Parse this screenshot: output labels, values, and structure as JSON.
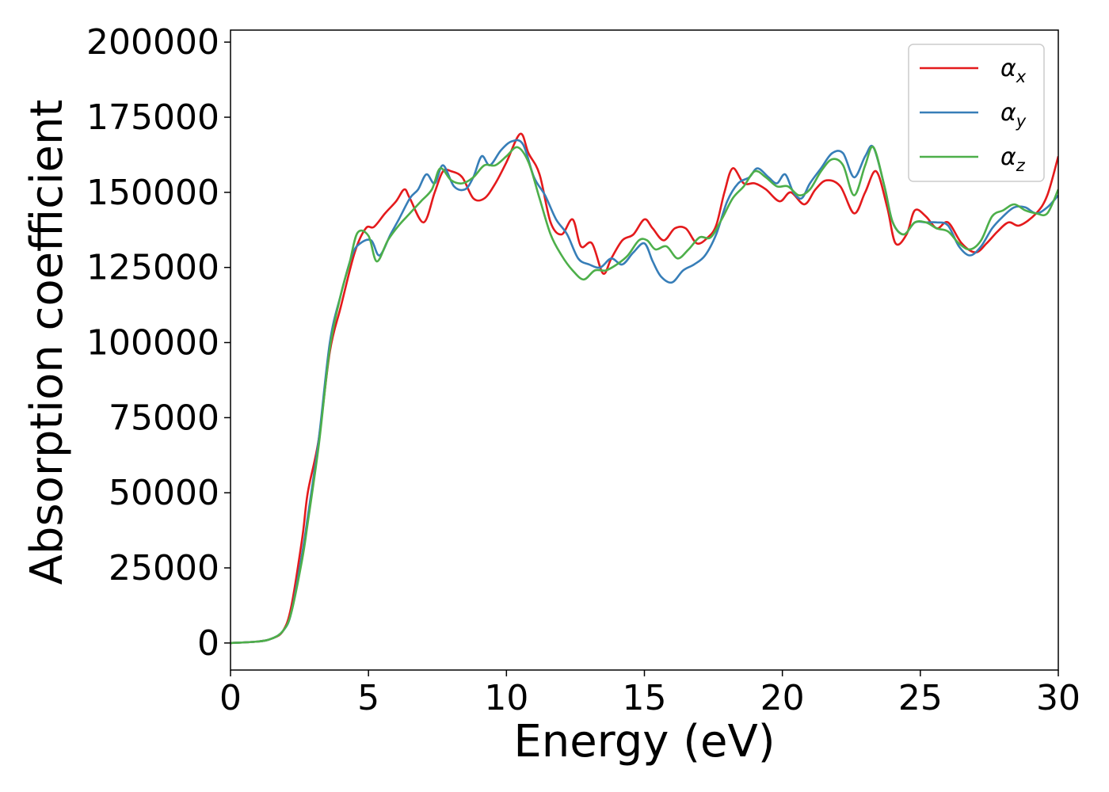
{
  "chart_data": {
    "type": "line",
    "title": "",
    "xlabel": "Energy (eV)",
    "ylabel": "Absorption coefficient",
    "xlim": [
      0,
      30
    ],
    "ylim": [
      -9000,
      204000
    ],
    "x_ticks": [
      0,
      5,
      10,
      15,
      20,
      25,
      30
    ],
    "y_ticks": [
      0,
      25000,
      50000,
      75000,
      100000,
      125000,
      150000,
      175000,
      200000
    ],
    "x_tick_labels": [
      "0",
      "5",
      "10",
      "15",
      "20",
      "25",
      "30"
    ],
    "y_tick_labels": [
      "0",
      "25000",
      "50000",
      "75000",
      "100000",
      "125000",
      "150000",
      "175000",
      "200000"
    ],
    "grid": false,
    "legend_position": "top-right",
    "series": [
      {
        "name": "α_x",
        "label_symbol": "α",
        "label_sub": "x",
        "color": "#e41a1c",
        "points": [
          [
            0,
            0
          ],
          [
            1,
            500
          ],
          [
            1.5,
            1500
          ],
          [
            1.9,
            4000
          ],
          [
            2.2,
            12000
          ],
          [
            2.6,
            35000
          ],
          [
            2.8,
            50000
          ],
          [
            3.2,
            68000
          ],
          [
            3.6,
            97000
          ],
          [
            4.0,
            112000
          ],
          [
            4.5,
            130000
          ],
          [
            4.9,
            138000
          ],
          [
            5.2,
            138500
          ],
          [
            5.6,
            143000
          ],
          [
            6.0,
            147000
          ],
          [
            6.3,
            151000
          ],
          [
            6.5,
            148000
          ],
          [
            7.0,
            140000
          ],
          [
            7.4,
            150000
          ],
          [
            7.7,
            157000
          ],
          [
            8.0,
            157000
          ],
          [
            8.4,
            155000
          ],
          [
            8.8,
            148000
          ],
          [
            9.2,
            148000
          ],
          [
            9.6,
            153000
          ],
          [
            10.0,
            160000
          ],
          [
            10.5,
            169500
          ],
          [
            10.8,
            163000
          ],
          [
            11.2,
            156000
          ],
          [
            11.6,
            140000
          ],
          [
            12.0,
            136000
          ],
          [
            12.4,
            141000
          ],
          [
            12.7,
            132000
          ],
          [
            13.1,
            133000
          ],
          [
            13.5,
            123000
          ],
          [
            13.8,
            128000
          ],
          [
            14.2,
            134000
          ],
          [
            14.6,
            136000
          ],
          [
            15.0,
            141000
          ],
          [
            15.3,
            138000
          ],
          [
            15.7,
            134000
          ],
          [
            16.1,
            138000
          ],
          [
            16.5,
            138000
          ],
          [
            16.9,
            133000
          ],
          [
            17.3,
            135000
          ],
          [
            17.6,
            139000
          ],
          [
            17.9,
            150000
          ],
          [
            18.2,
            158000
          ],
          [
            18.6,
            153000
          ],
          [
            19.0,
            153000
          ],
          [
            19.4,
            151000
          ],
          [
            19.9,
            147000
          ],
          [
            20.3,
            150000
          ],
          [
            20.8,
            146000
          ],
          [
            21.2,
            151000
          ],
          [
            21.6,
            154000
          ],
          [
            22.1,
            152000
          ],
          [
            22.6,
            143000
          ],
          [
            23.0,
            150000
          ],
          [
            23.4,
            157000
          ],
          [
            23.8,
            145000
          ],
          [
            24.1,
            133000
          ],
          [
            24.5,
            136000
          ],
          [
            24.8,
            144000
          ],
          [
            25.2,
            142000
          ],
          [
            25.6,
            138000
          ],
          [
            26.0,
            140000
          ],
          [
            26.5,
            133000
          ],
          [
            27.0,
            130000
          ],
          [
            27.4,
            133000
          ],
          [
            27.8,
            137000
          ],
          [
            28.2,
            140000
          ],
          [
            28.6,
            139000
          ],
          [
            29.2,
            143000
          ],
          [
            29.6,
            149000
          ],
          [
            30.0,
            162000
          ]
        ]
      },
      {
        "name": "α_y",
        "label_symbol": "α",
        "label_sub": "y",
        "color": "#377eb8",
        "points": [
          [
            0,
            0
          ],
          [
            1,
            500
          ],
          [
            1.5,
            1500
          ],
          [
            1.9,
            4000
          ],
          [
            2.2,
            10000
          ],
          [
            2.6,
            30000
          ],
          [
            2.8,
            42000
          ],
          [
            3.2,
            68000
          ],
          [
            3.6,
            100000
          ],
          [
            4.0,
            116000
          ],
          [
            4.4,
            129000
          ],
          [
            4.7,
            133000
          ],
          [
            5.1,
            134000
          ],
          [
            5.4,
            129000
          ],
          [
            5.8,
            136000
          ],
          [
            6.1,
            141000
          ],
          [
            6.5,
            148000
          ],
          [
            6.8,
            151000
          ],
          [
            7.1,
            156000
          ],
          [
            7.4,
            153000
          ],
          [
            7.7,
            159000
          ],
          [
            8.1,
            152000
          ],
          [
            8.5,
            151000
          ],
          [
            8.8,
            155000
          ],
          [
            9.1,
            162000
          ],
          [
            9.4,
            159000
          ],
          [
            9.8,
            164000
          ],
          [
            10.2,
            167000
          ],
          [
            10.6,
            166000
          ],
          [
            11.0,
            155000
          ],
          [
            11.4,
            149000
          ],
          [
            11.8,
            141000
          ],
          [
            12.2,
            136000
          ],
          [
            12.6,
            128000
          ],
          [
            13.0,
            126000
          ],
          [
            13.4,
            125000
          ],
          [
            13.8,
            128000
          ],
          [
            14.2,
            126000
          ],
          [
            14.6,
            130000
          ],
          [
            15.0,
            133000
          ],
          [
            15.3,
            127000
          ],
          [
            15.6,
            122000
          ],
          [
            16.0,
            120000
          ],
          [
            16.4,
            124000
          ],
          [
            16.8,
            126000
          ],
          [
            17.2,
            129000
          ],
          [
            17.6,
            136000
          ],
          [
            18.0,
            147000
          ],
          [
            18.4,
            153000
          ],
          [
            18.8,
            155000
          ],
          [
            19.1,
            158000
          ],
          [
            19.5,
            155000
          ],
          [
            19.8,
            153000
          ],
          [
            20.1,
            156000
          ],
          [
            20.4,
            150000
          ],
          [
            20.7,
            148000
          ],
          [
            21.0,
            153000
          ],
          [
            21.4,
            158000
          ],
          [
            21.8,
            163000
          ],
          [
            22.2,
            163000
          ],
          [
            22.6,
            155000
          ],
          [
            23.0,
            162000
          ],
          [
            23.3,
            165000
          ],
          [
            23.7,
            152000
          ],
          [
            24.0,
            140000
          ],
          [
            24.4,
            136000
          ],
          [
            24.8,
            140000
          ],
          [
            25.2,
            140000
          ],
          [
            25.6,
            140000
          ],
          [
            26.0,
            139000
          ],
          [
            26.4,
            132000
          ],
          [
            26.8,
            129000
          ],
          [
            27.2,
            132000
          ],
          [
            27.6,
            138000
          ],
          [
            28.0,
            142000
          ],
          [
            28.4,
            145000
          ],
          [
            28.8,
            145000
          ],
          [
            29.2,
            143000
          ],
          [
            29.6,
            145000
          ],
          [
            30.0,
            149000
          ]
        ]
      },
      {
        "name": "α_z",
        "label_symbol": "α",
        "label_sub": "z",
        "color": "#4daf4a",
        "points": [
          [
            0,
            0
          ],
          [
            1,
            500
          ],
          [
            1.5,
            1500
          ],
          [
            1.9,
            4000
          ],
          [
            2.2,
            10000
          ],
          [
            2.6,
            28000
          ],
          [
            2.8,
            40000
          ],
          [
            3.2,
            66000
          ],
          [
            3.6,
            98000
          ],
          [
            4.0,
            116000
          ],
          [
            4.3,
            126000
          ],
          [
            4.6,
            136500
          ],
          [
            5.0,
            135500
          ],
          [
            5.3,
            127000
          ],
          [
            5.7,
            134000
          ],
          [
            6.1,
            139000
          ],
          [
            6.5,
            143000
          ],
          [
            6.9,
            147000
          ],
          [
            7.3,
            151000
          ],
          [
            7.6,
            158000
          ],
          [
            8.0,
            154000
          ],
          [
            8.4,
            153000
          ],
          [
            8.8,
            155000
          ],
          [
            9.2,
            159000
          ],
          [
            9.6,
            159000
          ],
          [
            10.0,
            162000
          ],
          [
            10.4,
            165000
          ],
          [
            10.8,
            160000
          ],
          [
            11.2,
            148000
          ],
          [
            11.6,
            136000
          ],
          [
            12.0,
            129000
          ],
          [
            12.4,
            124000
          ],
          [
            12.8,
            121000
          ],
          [
            13.2,
            124000
          ],
          [
            13.6,
            124000
          ],
          [
            14.0,
            126000
          ],
          [
            14.4,
            129000
          ],
          [
            14.8,
            134000
          ],
          [
            15.1,
            134000
          ],
          [
            15.4,
            131000
          ],
          [
            15.8,
            132000
          ],
          [
            16.2,
            128000
          ],
          [
            16.6,
            131000
          ],
          [
            17.0,
            135000
          ],
          [
            17.4,
            135000
          ],
          [
            17.8,
            141000
          ],
          [
            18.2,
            148000
          ],
          [
            18.6,
            152000
          ],
          [
            19.0,
            157000
          ],
          [
            19.4,
            155000
          ],
          [
            19.8,
            152000
          ],
          [
            20.2,
            152000
          ],
          [
            20.6,
            149000
          ],
          [
            21.0,
            151000
          ],
          [
            21.4,
            157000
          ],
          [
            21.8,
            161000
          ],
          [
            22.2,
            159000
          ],
          [
            22.6,
            149000
          ],
          [
            23.0,
            159000
          ],
          [
            23.3,
            165000
          ],
          [
            23.7,
            152000
          ],
          [
            24.0,
            140000
          ],
          [
            24.4,
            136000
          ],
          [
            24.8,
            140000
          ],
          [
            25.2,
            140000
          ],
          [
            25.6,
            138000
          ],
          [
            26.0,
            137000
          ],
          [
            26.4,
            133000
          ],
          [
            26.8,
            131000
          ],
          [
            27.2,
            134000
          ],
          [
            27.6,
            142000
          ],
          [
            28.0,
            144000
          ],
          [
            28.4,
            146000
          ],
          [
            28.8,
            144000
          ],
          [
            29.2,
            143000
          ],
          [
            29.6,
            143000
          ],
          [
            30.0,
            151000
          ]
        ]
      }
    ]
  }
}
